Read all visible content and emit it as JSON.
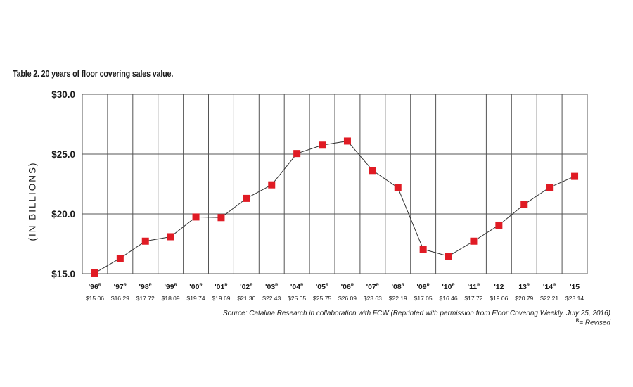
{
  "title": "Table 2. 20 years of floor covering sales value.",
  "source": "Source:  Catalina Research in collaboration with FCW (Reprinted with permission from Floor Covering Weekly, July 25, 2016)",
  "revised_mark": "R",
  "revised_text": "= Revised",
  "chart_data": {
    "type": "line",
    "title": "Table 2. 20 years of floor covering sales value.",
    "xlabel": "",
    "ylabel": "(IN BILLIONS)",
    "ylim": [
      15.0,
      30.0
    ],
    "yticks": [
      15.0,
      20.0,
      25.0,
      30.0
    ],
    "ytick_labels": [
      "$15.0",
      "$20.0",
      "$25.0",
      "$30.0"
    ],
    "grid": true,
    "marker_color": "#e01b24",
    "line_color": "#333333",
    "categories": [
      "'96",
      "'97",
      "'98",
      "'99",
      "'00",
      "'01",
      "'02",
      "'03",
      "'04",
      "'05",
      "'06",
      "'07",
      "'08",
      "'09",
      "'10",
      "'11",
      "'12",
      "13",
      "'14",
      "'15"
    ],
    "revised": [
      true,
      true,
      true,
      true,
      true,
      true,
      true,
      true,
      true,
      true,
      true,
      true,
      true,
      true,
      true,
      true,
      false,
      true,
      true,
      false
    ],
    "value_labels": [
      "$15.06",
      "$16.29",
      "$17.72",
      "$18.09",
      "$19.74",
      "$19.69",
      "$21.30",
      "$22.43",
      "$25.05",
      "$25.75",
      "$26.09",
      "$23.63",
      "$22.19",
      "$17.05",
      "$16.46",
      "$17.72",
      "$19.06",
      "$20.79",
      "$22.21",
      "$23.14"
    ],
    "values": [
      15.06,
      16.29,
      17.72,
      18.09,
      19.74,
      19.69,
      21.3,
      22.43,
      25.05,
      25.75,
      26.09,
      23.63,
      22.19,
      17.05,
      16.46,
      17.72,
      19.06,
      20.79,
      22.21,
      23.14
    ]
  }
}
